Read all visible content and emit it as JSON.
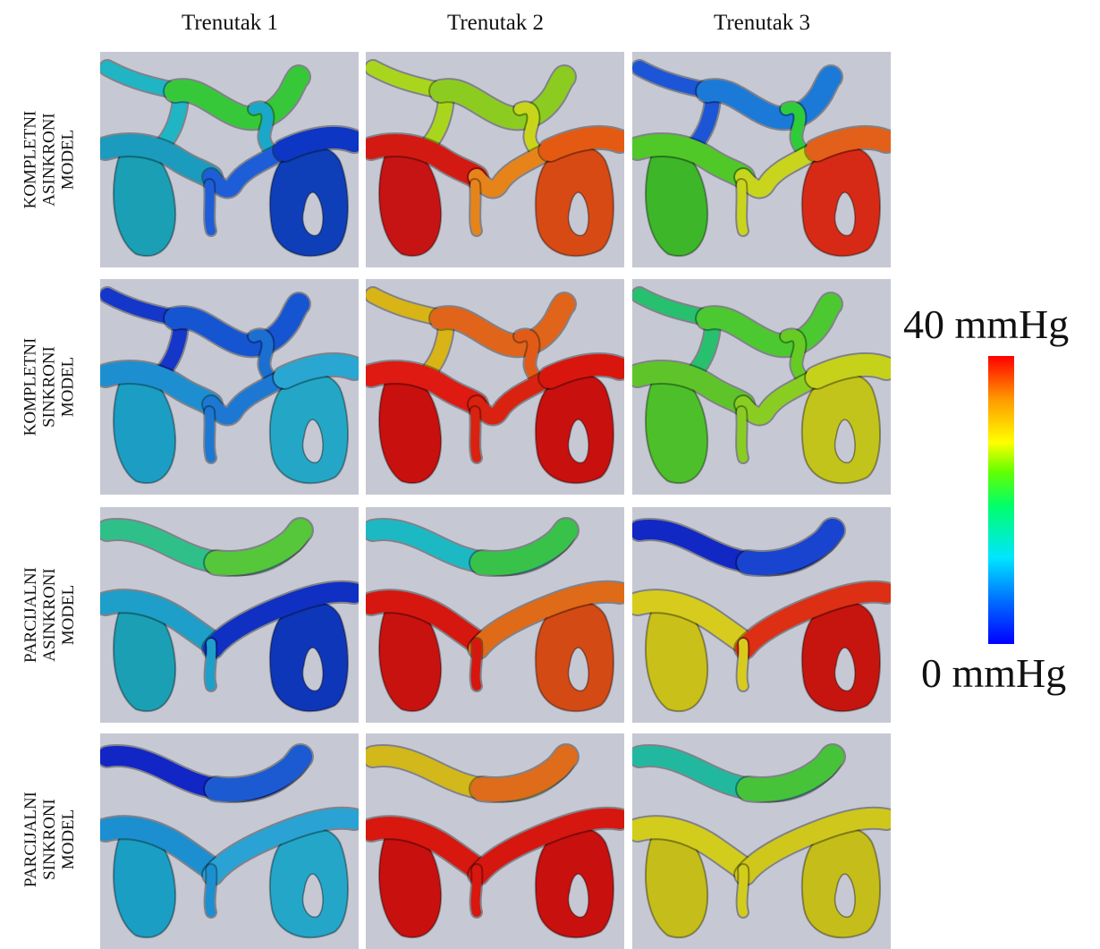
{
  "columns": [
    "Trenutak 1",
    "Trenutak 2",
    "Trenutak 3"
  ],
  "rows": [
    {
      "line1": "KOMPLETNI",
      "line2": "ASINKRONI",
      "line3": "MODEL",
      "type": "complete",
      "colors": [
        {
          "upper_left": "#1fb5c4",
          "upper_right": "#37c83a",
          "link_left": "#1aa8c8",
          "link_right": "#1aa8c8",
          "lower_left": "#1b9bbd",
          "lower_mid": "#1d5ed8",
          "lower_right": "#0d36c4",
          "sac_left": "#1b9fb5",
          "sac_right": "#0e3fb8"
        },
        {
          "upper_left": "#a9d61c",
          "upper_right": "#8ccc20",
          "link_left": "#c9d51a",
          "link_right": "#c9d51a",
          "lower_left": "#d31a12",
          "lower_mid": "#e6841a",
          "lower_right": "#e45a12",
          "sac_left": "#c61414",
          "sac_right": "#d84a14"
        },
        {
          "upper_left": "#1c56d6",
          "upper_right": "#1b7ad8",
          "link_left": "#1c8fd4",
          "link_right": "#2fcc3a",
          "lower_left": "#4fc828",
          "lower_mid": "#c9d41c",
          "lower_right": "#e2601a",
          "sac_left": "#3db62a",
          "sac_right": "#d72a16"
        }
      ]
    },
    {
      "line1": "KOMPLETNI",
      "line2": "SINKRONI",
      "line3": "MODEL",
      "type": "complete",
      "colors": [
        {
          "upper_left": "#1437c9",
          "upper_right": "#1655d2",
          "link_left": "#1a6fd0",
          "link_right": "#1a6fd0",
          "lower_left": "#1d8fd0",
          "lower_mid": "#1c78d2",
          "lower_right": "#2aa6d2",
          "sac_left": "#1c9ec4",
          "sac_right": "#24a7c6"
        },
        {
          "upper_left": "#d8b417",
          "upper_right": "#e0641a",
          "link_left": "#e25a18",
          "link_right": "#e25a18",
          "lower_left": "#de1a12",
          "lower_mid": "#d9220f",
          "lower_right": "#d8160e",
          "sac_left": "#c8100e",
          "sac_right": "#c8100e"
        },
        {
          "upper_left": "#27c06e",
          "upper_right": "#4cc830",
          "link_left": "#66cc24",
          "link_right": "#66cc24",
          "lower_left": "#5fc42a",
          "lower_mid": "#8acd22",
          "lower_right": "#c6d11a",
          "sac_left": "#4dbf2a",
          "sac_right": "#c2c41b"
        }
      ]
    },
    {
      "line1": "PARCIJALNI",
      "line2": "ASINKRONI",
      "line3": "MODEL",
      "type": "partial",
      "colors": [
        {
          "upper_left": "#2fc08a",
          "upper_right": "#56c63a",
          "lower_left": "#1d9fc9",
          "lower_right": "#0f30c2",
          "sac_left": "#1b9fb5",
          "sac_right": "#0e36b8"
        },
        {
          "upper_left": "#1cb9c4",
          "upper_right": "#39c24a",
          "lower_left": "#d6170f",
          "lower_right": "#df6a18",
          "sac_left": "#c8120f",
          "sac_right": "#d44a14"
        },
        {
          "upper_left": "#1228c4",
          "upper_right": "#1844d0",
          "lower_left": "#d7cc1d",
          "lower_right": "#dc2f14",
          "sac_left": "#c9c01a",
          "sac_right": "#c6150f"
        }
      ]
    },
    {
      "line1": "PARCIJALNI",
      "line2": "SINKRONI",
      "line3": "MODEL",
      "type": "partial",
      "colors": [
        {
          "upper_left": "#1226c6",
          "upper_right": "#1c5ad2",
          "lower_left": "#1b8fd0",
          "lower_right": "#2aa2d4",
          "sac_left": "#1b9ec4",
          "sac_right": "#24a6c8"
        },
        {
          "upper_left": "#d2b81a",
          "upper_right": "#df6c1a",
          "lower_left": "#d8170f",
          "lower_right": "#d6170f",
          "sac_left": "#c8100e",
          "sac_right": "#c8100e"
        },
        {
          "upper_left": "#22b8a0",
          "upper_right": "#47c33a",
          "lower_left": "#d2cc1c",
          "lower_right": "#cfc71b",
          "sac_left": "#c5bd1a",
          "sac_right": "#c5bd1a"
        }
      ]
    }
  ],
  "scale": {
    "max_label": "40 mmHg",
    "min_label": "0 mmHg",
    "colors": [
      "#0000ff",
      "#00e6ff",
      "#00ff6a",
      "#ffff00",
      "#ff9900",
      "#ff0000"
    ]
  }
}
